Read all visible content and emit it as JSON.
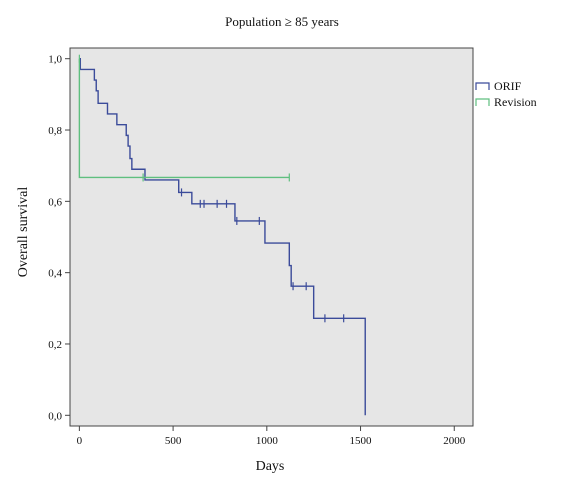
{
  "chart_data": {
    "type": "line",
    "title": "Population ≥ 85 years",
    "xlabel": "Days",
    "ylabel": "Overall survival",
    "xlim": [
      -50,
      2100
    ],
    "ylim": [
      -0.03,
      1.03
    ],
    "x_ticks": [
      0,
      500,
      1000,
      1500,
      2000
    ],
    "x_tick_labels": [
      "0",
      "500",
      "1000",
      "1500",
      "2000"
    ],
    "y_ticks": [
      0.0,
      0.2,
      0.4,
      0.6,
      0.8,
      1.0
    ],
    "y_tick_labels": [
      "0,0",
      "0,2",
      "0,4",
      "0,6",
      "0,8",
      "1,0"
    ],
    "grid": false,
    "legend_position": "right",
    "plot_background": "#e6e6e6",
    "series": [
      {
        "name": "ORIF",
        "color": "#3b4b9a",
        "step_x": [
          0,
          5,
          80,
          90,
          100,
          150,
          200,
          250,
          260,
          270,
          280,
          350,
          530,
          600,
          650,
          700,
          750,
          800,
          830,
          990,
          1120,
          1130,
          1230,
          1250,
          1520,
          1525
        ],
        "step_y": [
          1.0,
          0.97,
          0.94,
          0.91,
          0.875,
          0.845,
          0.815,
          0.785,
          0.755,
          0.72,
          0.69,
          0.66,
          0.625,
          0.593,
          0.593,
          0.593,
          0.593,
          0.593,
          0.545,
          0.483,
          0.42,
          0.362,
          0.362,
          0.272,
          0.272,
          0.0
        ],
        "censored_x": [
          545,
          645,
          665,
          735,
          785,
          840,
          960,
          1140,
          1210,
          1310,
          1410
        ],
        "censored_y": [
          0.625,
          0.593,
          0.593,
          0.593,
          0.593,
          0.545,
          0.545,
          0.362,
          0.362,
          0.272,
          0.272
        ]
      },
      {
        "name": "Revision",
        "color": "#5fbf7f",
        "step_x": [
          0,
          0,
          1120
        ],
        "step_y": [
          1.0,
          0.667,
          0.667
        ],
        "censored_x": [
          0,
          340,
          1120
        ],
        "censored_y": [
          1.0,
          0.667,
          0.667
        ]
      }
    ]
  }
}
